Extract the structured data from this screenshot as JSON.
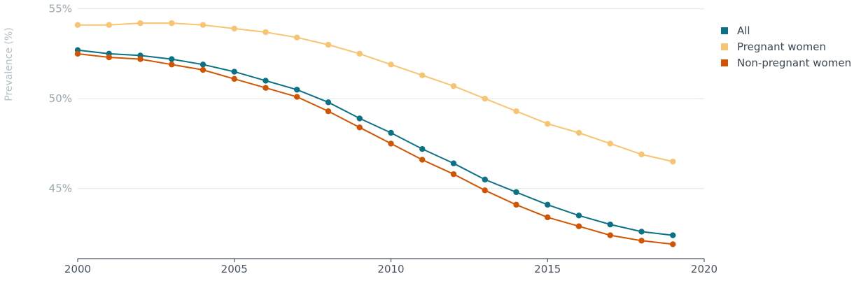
{
  "colors": {
    "all": "#0b7285",
    "pregnant": "#f8c471",
    "non_pregnant": "#d35400",
    "grid": "#dde6e6",
    "axis": "#4a5560",
    "tick_text": "#9aa7b0",
    "axis_title": "#b4c0c6"
  },
  "chart_data": {
    "type": "line",
    "x": [
      2000,
      2001,
      2002,
      2003,
      2004,
      2005,
      2006,
      2007,
      2008,
      2009,
      2010,
      2011,
      2012,
      2013,
      2014,
      2015,
      2016,
      2017,
      2018,
      2019
    ],
    "series": [
      {
        "name": "All",
        "color": "#0b7285",
        "values": [
          52.7,
          52.5,
          52.4,
          52.2,
          51.9,
          51.5,
          51.0,
          50.5,
          49.8,
          48.9,
          48.1,
          47.2,
          46.4,
          45.5,
          44.8,
          44.1,
          43.5,
          43.0,
          42.6,
          42.4
        ]
      },
      {
        "name": "Pregnant women",
        "color": "#f8c471",
        "values": [
          54.1,
          54.1,
          54.2,
          54.2,
          54.1,
          53.9,
          53.7,
          53.4,
          53.0,
          52.5,
          51.9,
          51.3,
          50.7,
          50.0,
          49.3,
          48.6,
          48.1,
          47.5,
          46.9,
          46.5
        ]
      },
      {
        "name": "Non-pregnant women",
        "color": "#d35400",
        "values": [
          52.5,
          52.3,
          52.2,
          51.9,
          51.6,
          51.1,
          50.6,
          50.1,
          49.3,
          48.4,
          47.5,
          46.6,
          45.8,
          44.9,
          44.1,
          43.4,
          42.9,
          42.4,
          42.1,
          41.9
        ]
      }
    ],
    "xlabel": "",
    "ylabel": "Prevalence (%)",
    "xticks": [
      "2000",
      "2005",
      "2010",
      "2015",
      "2020"
    ],
    "xtick_values": [
      2000,
      2005,
      2010,
      2015,
      2020
    ],
    "yticks": [
      "45%",
      "50%",
      "55%"
    ],
    "ytick_values": [
      45,
      50,
      55
    ],
    "xlim": [
      2000,
      2020
    ],
    "ylim": [
      41.1,
      55.1
    ],
    "grid": "horizontal",
    "legend_position": "top-right"
  }
}
